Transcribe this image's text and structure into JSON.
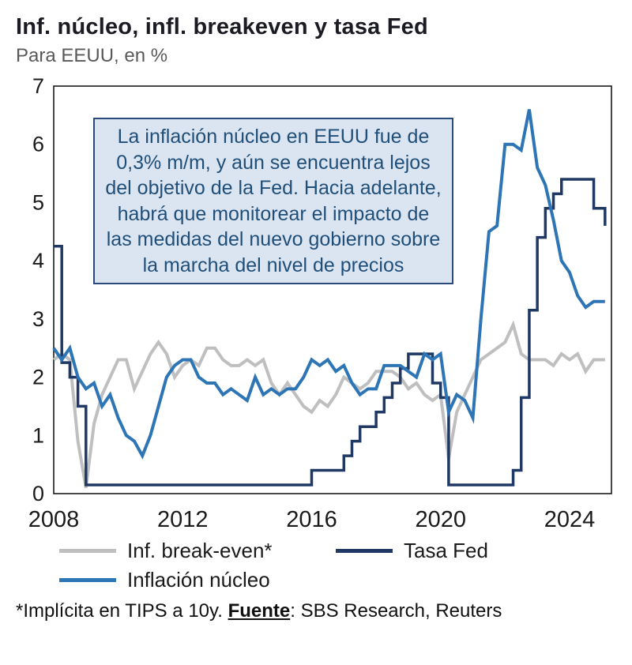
{
  "header": {
    "title": "Inf. núcleo, infl. breakeven y tasa Fed",
    "subtitle": "Para EEUU, en %"
  },
  "annotation": {
    "text": "La inflación núcleo en EEUU fue de 0,3% m/m, y aún se encuentra lejos del objetivo de la Fed. Hacia adelante, habrá que monitorear el impacto de las medidas del nuevo gobierno sobre la marcha del nivel de precios"
  },
  "legend": [
    {
      "label": "Inf. break-even*",
      "color": "#bfbfbf"
    },
    {
      "label": "Tasa Fed",
      "color": "#1f3864"
    },
    {
      "label": "Inflación núcleo",
      "color": "#2e75b6"
    }
  ],
  "footnote": {
    "pre": "*Implícita en TIPS a 10y. ",
    "source_label": "Fuente",
    "post": ": SBS Research, Reuters"
  },
  "chart_data": {
    "type": "line",
    "title": "Inf. núcleo, infl. breakeven y tasa Fed",
    "subtitle": "Para EEUU, en %",
    "xlabel": "",
    "ylabel": "",
    "xlim": [
      2008,
      2025.3
    ],
    "ylim": [
      0,
      7
    ],
    "x_ticks": [
      2008,
      2012,
      2016,
      2020,
      2024
    ],
    "y_ticks": [
      0,
      1,
      2,
      3,
      4,
      5,
      6,
      7
    ],
    "grid": false,
    "legend_position": "bottom",
    "x": [
      2008,
      2008.25,
      2008.5,
      2008.75,
      2009,
      2009.25,
      2009.5,
      2009.75,
      2010,
      2010.25,
      2010.5,
      2010.75,
      2011,
      2011.25,
      2011.5,
      2011.75,
      2012,
      2012.25,
      2012.5,
      2012.75,
      2013,
      2013.25,
      2013.5,
      2013.75,
      2014,
      2014.25,
      2014.5,
      2014.75,
      2015,
      2015.25,
      2015.5,
      2015.75,
      2016,
      2016.25,
      2016.5,
      2016.75,
      2017,
      2017.25,
      2017.5,
      2017.75,
      2018,
      2018.25,
      2018.5,
      2018.75,
      2019,
      2019.25,
      2019.5,
      2019.75,
      2020,
      2020.25,
      2020.5,
      2020.75,
      2021,
      2021.25,
      2021.5,
      2021.75,
      2022,
      2022.25,
      2022.5,
      2022.75,
      2023,
      2023.25,
      2023.5,
      2023.75,
      2024,
      2024.25,
      2024.5,
      2024.75,
      2025.1
    ],
    "series": [
      {
        "name": "Inf. break-even*",
        "color": "#bfbfbf",
        "stroke_width": 4,
        "step": false,
        "values": [
          2.3,
          2.4,
          2.3,
          0.9,
          0.1,
          1.2,
          1.7,
          2.0,
          2.3,
          2.3,
          1.8,
          2.1,
          2.4,
          2.6,
          2.4,
          2.0,
          2.2,
          2.3,
          2.2,
          2.5,
          2.5,
          2.3,
          2.2,
          2.2,
          2.3,
          2.2,
          2.3,
          1.9,
          1.7,
          1.9,
          1.7,
          1.5,
          1.4,
          1.6,
          1.5,
          1.7,
          2.0,
          1.9,
          1.8,
          1.9,
          2.1,
          2.1,
          2.1,
          2.0,
          1.8,
          1.9,
          1.7,
          1.6,
          1.7,
          0.6,
          1.4,
          1.7,
          2.0,
          2.3,
          2.4,
          2.5,
          2.6,
          2.9,
          2.4,
          2.3,
          2.3,
          2.3,
          2.2,
          2.4,
          2.3,
          2.4,
          2.1,
          2.3,
          2.3
        ]
      },
      {
        "name": "Tasa Fed",
        "color": "#1f3864",
        "stroke_width": 3.5,
        "step": true,
        "values": [
          4.25,
          2.25,
          2.0,
          1.5,
          0.15,
          0.15,
          0.15,
          0.15,
          0.15,
          0.15,
          0.15,
          0.15,
          0.15,
          0.15,
          0.15,
          0.15,
          0.15,
          0.15,
          0.15,
          0.15,
          0.15,
          0.15,
          0.15,
          0.15,
          0.15,
          0.15,
          0.15,
          0.15,
          0.15,
          0.15,
          0.15,
          0.15,
          0.4,
          0.4,
          0.4,
          0.4,
          0.65,
          0.9,
          1.15,
          1.15,
          1.4,
          1.65,
          1.9,
          2.15,
          2.4,
          2.4,
          2.4,
          1.9,
          1.65,
          0.15,
          0.15,
          0.15,
          0.15,
          0.15,
          0.15,
          0.15,
          0.15,
          0.4,
          1.65,
          3.15,
          4.4,
          4.9,
          5.15,
          5.4,
          5.4,
          5.4,
          5.4,
          4.9,
          4.6
        ]
      },
      {
        "name": "Inflación núcleo",
        "color": "#2e75b6",
        "stroke_width": 4,
        "step": false,
        "values": [
          2.5,
          2.3,
          2.5,
          2.0,
          1.8,
          1.9,
          1.5,
          1.7,
          1.3,
          1.0,
          0.9,
          0.65,
          1.0,
          1.5,
          2.0,
          2.2,
          2.3,
          2.3,
          2.0,
          1.9,
          1.9,
          1.7,
          1.8,
          1.7,
          1.6,
          2.0,
          1.7,
          1.8,
          1.7,
          1.8,
          1.8,
          2.0,
          2.3,
          2.2,
          2.3,
          2.1,
          2.2,
          1.9,
          1.7,
          1.8,
          1.8,
          2.2,
          2.2,
          2.2,
          2.1,
          2.0,
          2.4,
          2.3,
          2.4,
          1.4,
          1.7,
          1.6,
          1.3,
          3.0,
          4.5,
          4.6,
          6.0,
          6.0,
          5.9,
          6.6,
          5.6,
          5.3,
          4.7,
          4.0,
          3.8,
          3.4,
          3.2,
          3.3,
          3.3
        ]
      }
    ]
  }
}
